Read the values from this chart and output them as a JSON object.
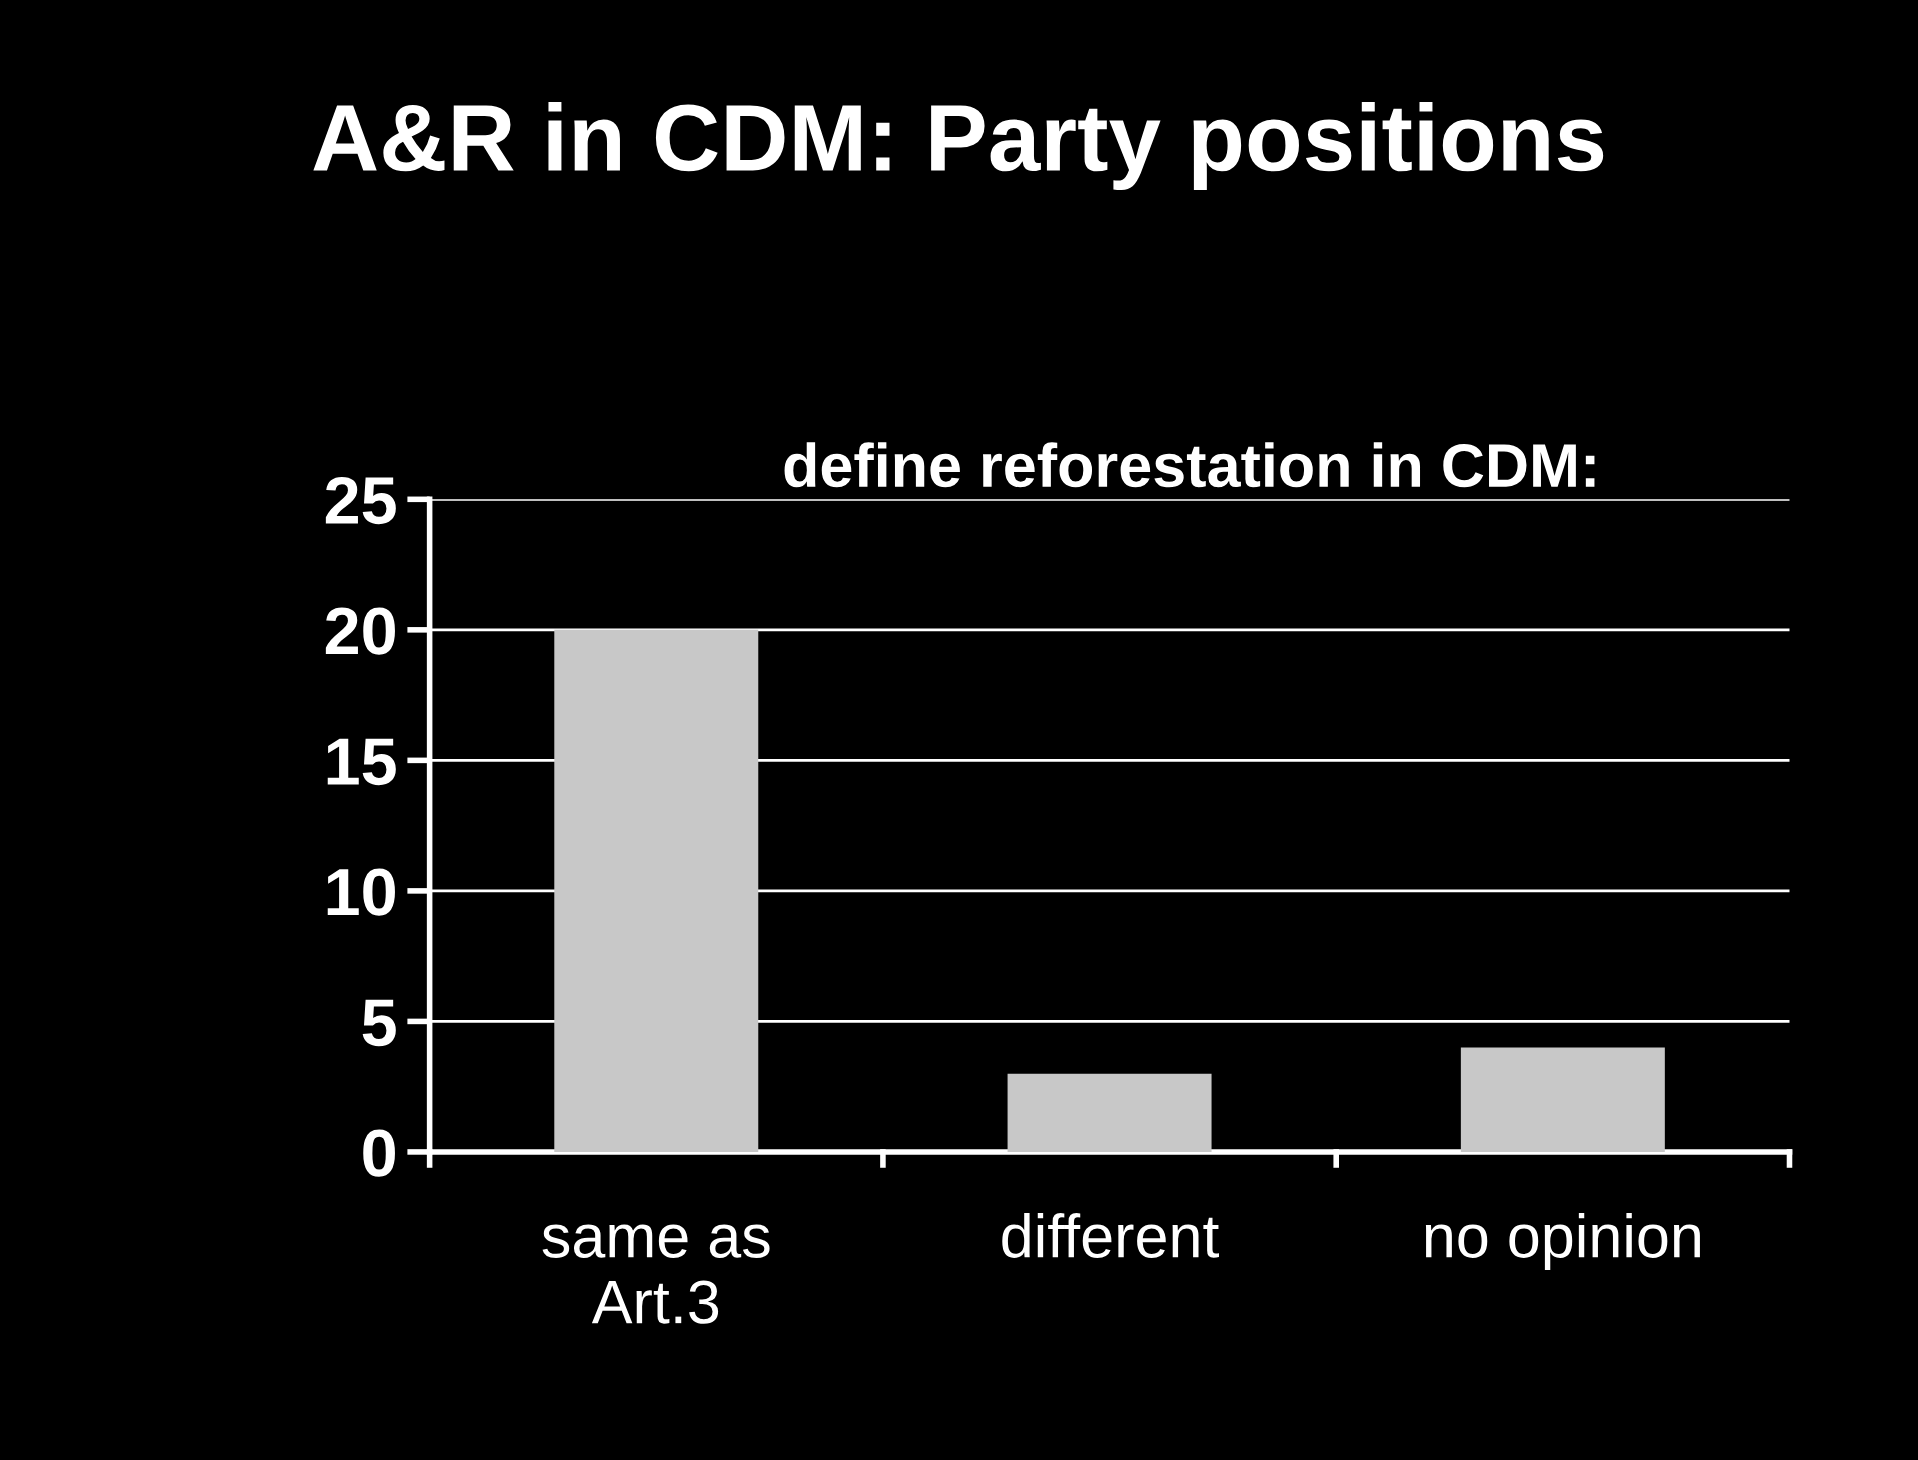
{
  "chart_data": {
    "type": "bar",
    "title": "A&R in CDM: Party positions",
    "subtitle": "define reforestation in CDM:",
    "categories": [
      "same as\nArt.3",
      "different",
      "no opinion"
    ],
    "values": [
      20,
      3,
      4
    ],
    "color": "#c8c8c8",
    "ylim": [
      0,
      25
    ],
    "yticks": [
      0,
      5,
      10,
      15,
      20,
      25
    ],
    "grid": "y",
    "legend": false
  }
}
